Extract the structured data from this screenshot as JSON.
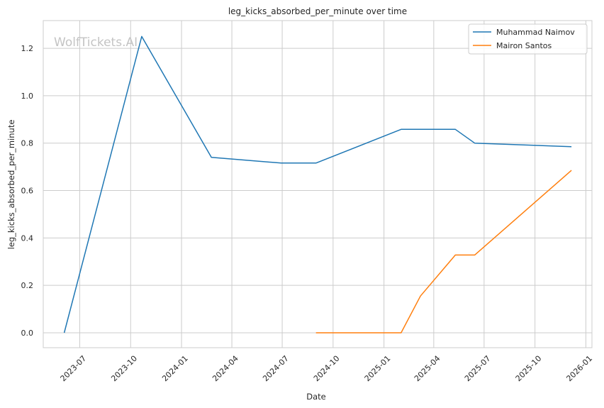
{
  "chart_data": {
    "type": "line",
    "title": "leg_kicks_absorbed_per_minute over time",
    "xlabel": "Date",
    "ylabel": "leg_kicks_absorbed_per_minute",
    "watermark": "WolfTickets.AI",
    "x_ticks": [
      "2023-07",
      "2023-10",
      "2024-01",
      "2024-04",
      "2024-07",
      "2024-10",
      "2025-01",
      "2025-04",
      "2025-07",
      "2025-10",
      "2026-01"
    ],
    "y_ticks": [
      "0.0",
      "0.2",
      "0.4",
      "0.6",
      "0.8",
      "1.0",
      "1.2"
    ],
    "xlim": [
      "2023-04-26",
      "2026-01-12"
    ],
    "ylim": [
      -0.063,
      1.317
    ],
    "grid": true,
    "legend_position": "top-right",
    "series": [
      {
        "name": "Muhammad Naimov",
        "color": "#1f77b4",
        "x": [
          "2023-06-03",
          "2023-10-21",
          "2024-02-24",
          "2024-06-29",
          "2024-08-31",
          "2025-02-01",
          "2025-05-10",
          "2025-06-14",
          "2025-12-06"
        ],
        "y": [
          0.0,
          1.25,
          0.74,
          0.716,
          0.716,
          0.858,
          0.858,
          0.8,
          0.785
        ]
      },
      {
        "name": "Mairon Santos",
        "color": "#ff7f0e",
        "x": [
          "2024-08-31",
          "2025-02-01",
          "2025-03-08",
          "2025-05-10",
          "2025-06-14",
          "2025-12-06"
        ],
        "y": [
          0.0,
          0.0,
          0.155,
          0.328,
          0.328,
          0.685
        ]
      }
    ]
  }
}
